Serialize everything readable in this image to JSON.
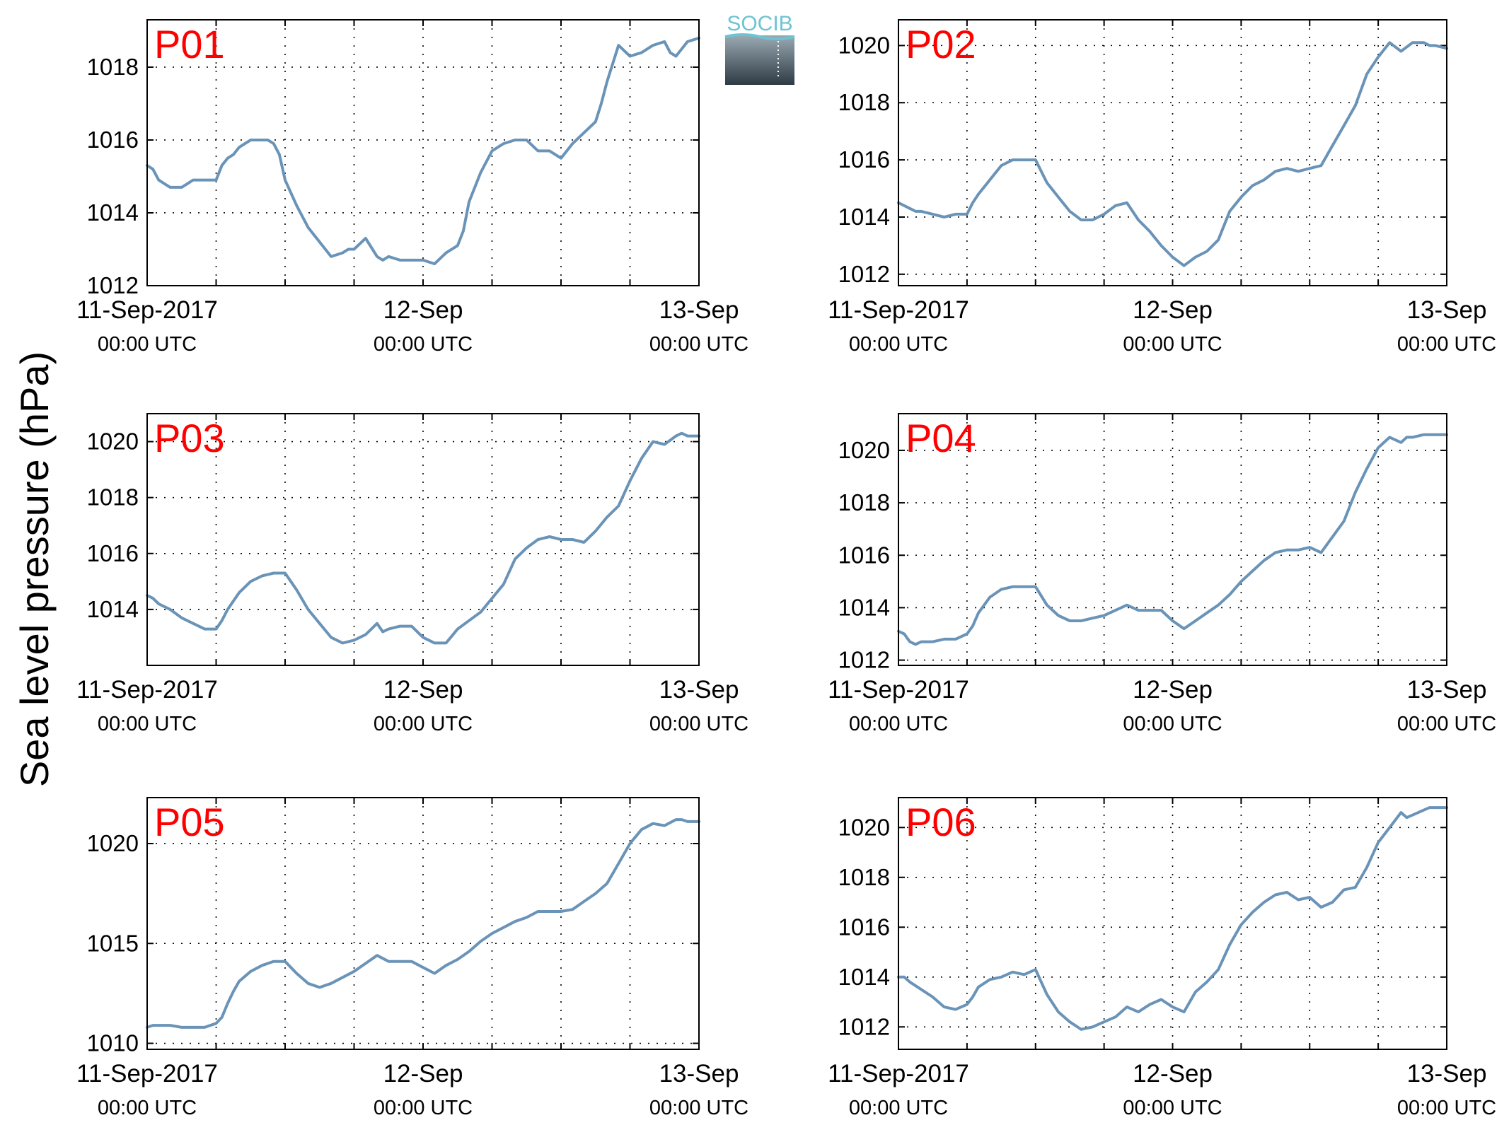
{
  "figure": {
    "ylabel": "Sea level pressure (hPa)",
    "logo_text": "SOCIB",
    "colors": {
      "line": "#6A93B8",
      "panel_label": "#FF0000",
      "axes": "#000000",
      "grid": "#000000",
      "logo_top": "#6EC3D3",
      "logo_bottom": "#2E3B44"
    }
  },
  "chart_data": [
    {
      "type": "line",
      "panel": "P01",
      "xlim": [
        0,
        48
      ],
      "ylim": [
        1012,
        1019.3
      ],
      "yticks": [
        1012,
        1014,
        1016,
        1018
      ],
      "xtick_labels": [
        [
          "11-Sep-2017",
          "00:00 UTC"
        ],
        [
          "12-Sep",
          "00:00 UTC"
        ],
        [
          "13-Sep",
          "00:00 UTC"
        ]
      ],
      "grid": true,
      "series": [
        {
          "x": [
            0,
            0.5,
            1,
            1.5,
            2,
            3,
            3.5,
            4,
            5,
            6,
            6.5,
            7,
            7.5,
            8,
            9,
            10,
            10.5,
            11,
            11.5,
            12,
            13,
            14,
            15,
            16,
            17,
            17.5,
            18,
            19,
            20,
            20.5,
            21,
            22,
            23,
            24,
            25,
            26,
            27,
            27.5,
            28,
            29,
            30,
            31,
            32,
            33,
            34,
            35,
            36,
            37,
            38,
            39,
            39.5,
            40,
            41,
            42,
            43,
            44,
            45,
            45.5,
            46,
            46.5,
            47,
            48
          ],
          "y": [
            1015.3,
            1015.2,
            1014.9,
            1014.8,
            1014.7,
            1014.7,
            1014.8,
            1014.9,
            1014.9,
            1014.9,
            1015.3,
            1015.5,
            1015.6,
            1015.8,
            1016,
            1016,
            1016,
            1015.9,
            1015.6,
            1014.9,
            1014.2,
            1013.6,
            1013.2,
            1012.8,
            1012.9,
            1013,
            1013,
            1013.3,
            1012.8,
            1012.7,
            1012.8,
            1012.7,
            1012.7,
            1012.7,
            1012.6,
            1012.9,
            1013.1,
            1013.5,
            1014.3,
            1015.1,
            1015.7,
            1015.9,
            1016,
            1016,
            1015.7,
            1015.7,
            1015.5,
            1015.9,
            1016.2,
            1016.5,
            1017,
            1017.6,
            1018.6,
            1018.3,
            1018.4,
            1018.6,
            1018.7,
            1018.4,
            1018.3,
            1018.5,
            1018.7,
            1018.8
          ]
        }
      ]
    },
    {
      "type": "line",
      "panel": "P02",
      "xlim": [
        0,
        48
      ],
      "ylim": [
        1011.6,
        1020.9
      ],
      "yticks": [
        1012,
        1014,
        1016,
        1018,
        1020
      ],
      "xtick_labels": [
        [
          "11-Sep-2017",
          "00:00 UTC"
        ],
        [
          "12-Sep",
          "00:00 UTC"
        ],
        [
          "13-Sep",
          "00:00 UTC"
        ]
      ],
      "grid": true,
      "series": [
        {
          "x": [
            0,
            0.5,
            1,
            1.5,
            2,
            3,
            4,
            5,
            6,
            6.5,
            7,
            8,
            9,
            10,
            11,
            12,
            13,
            14,
            15,
            16,
            17,
            18,
            19,
            20,
            20.5,
            21,
            22,
            23,
            24,
            25,
            26,
            27,
            28,
            29,
            30,
            31,
            32,
            33,
            34,
            35,
            36,
            37,
            38,
            39,
            40,
            41,
            42,
            43,
            44,
            45,
            46,
            46.5,
            47,
            48
          ],
          "y": [
            1014.5,
            1014.4,
            1014.3,
            1014.2,
            1014.2,
            1014.1,
            1014,
            1014.1,
            1014.1,
            1014.5,
            1014.8,
            1015.3,
            1015.8,
            1016,
            1016,
            1016,
            1015.2,
            1014.7,
            1014.2,
            1013.9,
            1013.9,
            1014.1,
            1014.4,
            1014.5,
            1014.2,
            1013.9,
            1013.5,
            1013,
            1012.6,
            1012.3,
            1012.6,
            1012.8,
            1013.2,
            1014.2,
            1014.7,
            1015.1,
            1015.3,
            1015.6,
            1015.7,
            1015.6,
            1015.7,
            1015.8,
            1016.5,
            1017.2,
            1017.9,
            1019,
            1019.6,
            1020.1,
            1019.8,
            1020.1,
            1020.1,
            1020,
            1020,
            1019.9
          ]
        }
      ]
    },
    {
      "type": "line",
      "panel": "P03",
      "xlim": [
        0,
        48
      ],
      "ylim": [
        1012,
        1021
      ],
      "yticks": [
        1014,
        1016,
        1018,
        1020
      ],
      "xtick_labels": [
        [
          "11-Sep-2017",
          "00:00 UTC"
        ],
        [
          "12-Sep",
          "00:00 UTC"
        ],
        [
          "13-Sep",
          "00:00 UTC"
        ]
      ],
      "grid": true,
      "series": [
        {
          "x": [
            0,
            0.5,
            1,
            2,
            3,
            4,
            5,
            6,
            6.5,
            7,
            7.5,
            8,
            9,
            10,
            11,
            12,
            13,
            14,
            15,
            16,
            17,
            18,
            19,
            20,
            20.5,
            21,
            22,
            23,
            24,
            25,
            26,
            27,
            28,
            29,
            30,
            31,
            32,
            33,
            34,
            35,
            36,
            37,
            38,
            39,
            40,
            41,
            42,
            43,
            44,
            45,
            46,
            46.5,
            47,
            48
          ],
          "y": [
            1014.5,
            1014.4,
            1014.2,
            1014,
            1013.7,
            1013.5,
            1013.3,
            1013.3,
            1013.6,
            1014,
            1014.3,
            1014.6,
            1015,
            1015.2,
            1015.3,
            1015.3,
            1014.7,
            1014,
            1013.5,
            1013,
            1012.8,
            1012.9,
            1013.1,
            1013.5,
            1013.2,
            1013.3,
            1013.4,
            1013.4,
            1013,
            1012.8,
            1012.8,
            1013.3,
            1013.6,
            1013.9,
            1014.4,
            1014.9,
            1015.8,
            1016.2,
            1016.5,
            1016.6,
            1016.5,
            1016.5,
            1016.4,
            1016.8,
            1017.3,
            1017.7,
            1018.6,
            1019.4,
            1020,
            1019.9,
            1020.2,
            1020.3,
            1020.2,
            1020.2
          ]
        }
      ]
    },
    {
      "type": "line",
      "panel": "P04",
      "xlim": [
        0,
        48
      ],
      "ylim": [
        1011.8,
        1021.4
      ],
      "yticks": [
        1012,
        1014,
        1016,
        1018,
        1020
      ],
      "xtick_labels": [
        [
          "11-Sep-2017",
          "00:00 UTC"
        ],
        [
          "12-Sep",
          "00:00 UTC"
        ],
        [
          "13-Sep",
          "00:00 UTC"
        ]
      ],
      "grid": true,
      "series": [
        {
          "x": [
            0,
            0.5,
            1,
            1.5,
            2,
            3,
            4,
            5,
            6,
            6.5,
            7,
            7.5,
            8,
            9,
            10,
            11,
            12,
            13,
            14,
            15,
            16,
            17,
            18,
            19,
            20,
            21,
            22,
            23,
            24,
            25,
            26,
            27,
            28,
            29,
            30,
            31,
            32,
            33,
            34,
            35,
            36,
            37,
            38,
            39,
            40,
            41,
            42,
            43,
            44,
            44.5,
            45,
            46,
            46.5,
            47,
            48
          ],
          "y": [
            1013.1,
            1013,
            1012.7,
            1012.6,
            1012.7,
            1012.7,
            1012.8,
            1012.8,
            1013,
            1013.3,
            1013.8,
            1014.1,
            1014.4,
            1014.7,
            1014.8,
            1014.8,
            1014.8,
            1014.1,
            1013.7,
            1013.5,
            1013.5,
            1013.6,
            1013.7,
            1013.9,
            1014.1,
            1013.9,
            1013.9,
            1013.9,
            1013.5,
            1013.2,
            1013.5,
            1013.8,
            1014.1,
            1014.5,
            1015,
            1015.4,
            1015.8,
            1016.1,
            1016.2,
            1016.2,
            1016.3,
            1016.1,
            1016.7,
            1017.3,
            1018.4,
            1019.3,
            1020.1,
            1020.5,
            1020.3,
            1020.5,
            1020.5,
            1020.6,
            1020.6,
            1020.6,
            1020.6
          ]
        }
      ]
    },
    {
      "type": "line",
      "panel": "P05",
      "xlim": [
        0,
        48
      ],
      "ylim": [
        1009.7,
        1022.3
      ],
      "yticks": [
        1010,
        1015,
        1020
      ],
      "xtick_labels": [
        [
          "11-Sep-2017",
          "00:00 UTC"
        ],
        [
          "12-Sep",
          "00:00 UTC"
        ],
        [
          "13-Sep",
          "00:00 UTC"
        ]
      ],
      "grid": true,
      "series": [
        {
          "x": [
            0,
            0.5,
            1,
            2,
            3,
            4,
            5,
            6,
            6.5,
            7,
            7.5,
            8,
            9,
            10,
            11,
            12,
            13,
            14,
            15,
            16,
            17,
            18,
            19,
            20,
            21,
            22,
            23,
            24,
            25,
            26,
            27,
            28,
            29,
            30,
            31,
            32,
            33,
            34,
            35,
            36,
            37,
            38,
            39,
            40,
            41,
            42,
            43,
            44,
            45,
            46,
            46.5,
            47,
            48
          ],
          "y": [
            1010.8,
            1010.9,
            1010.9,
            1010.9,
            1010.8,
            1010.8,
            1010.8,
            1011,
            1011.3,
            1012,
            1012.6,
            1013.1,
            1013.6,
            1013.9,
            1014.1,
            1014.1,
            1013.5,
            1013,
            1012.8,
            1013,
            1013.3,
            1013.6,
            1014,
            1014.4,
            1014.1,
            1014.1,
            1014.1,
            1013.8,
            1013.5,
            1013.9,
            1014.2,
            1014.6,
            1015.1,
            1015.5,
            1015.8,
            1016.1,
            1016.3,
            1016.6,
            1016.6,
            1016.6,
            1016.7,
            1017.1,
            1017.5,
            1018,
            1019,
            1020,
            1020.7,
            1021,
            1020.9,
            1021.2,
            1021.2,
            1021.1,
            1021.1
          ]
        }
      ]
    },
    {
      "type": "line",
      "panel": "P06",
      "xlim": [
        0,
        48
      ],
      "ylim": [
        1011.1,
        1021.2
      ],
      "yticks": [
        1012,
        1014,
        1016,
        1018,
        1020
      ],
      "xtick_labels": [
        [
          "11-Sep-2017",
          "00:00 UTC"
        ],
        [
          "12-Sep",
          "00:00 UTC"
        ],
        [
          "13-Sep",
          "00:00 UTC"
        ]
      ],
      "grid": true,
      "series": [
        {
          "x": [
            0,
            0.5,
            1,
            2,
            3,
            4,
            5,
            6,
            6.5,
            7,
            8,
            9,
            10,
            11,
            12,
            12.5,
            13,
            14,
            15,
            16,
            17,
            18,
            19,
            20,
            21,
            22,
            23,
            24,
            25,
            26,
            27,
            28,
            29,
            30,
            31,
            32,
            33,
            34,
            35,
            36,
            37,
            38,
            39,
            40,
            41,
            42,
            43,
            44,
            44.5,
            45,
            46,
            46.5,
            47,
            48
          ],
          "y": [
            1014,
            1014,
            1013.8,
            1013.5,
            1013.2,
            1012.8,
            1012.7,
            1012.9,
            1013.2,
            1013.6,
            1013.9,
            1014,
            1014.2,
            1014.1,
            1014.3,
            1013.8,
            1013.3,
            1012.6,
            1012.2,
            1011.9,
            1012,
            1012.2,
            1012.4,
            1012.8,
            1012.6,
            1012.9,
            1013.1,
            1012.8,
            1012.6,
            1013.4,
            1013.8,
            1014.3,
            1015.3,
            1016.1,
            1016.6,
            1017,
            1017.3,
            1017.4,
            1017.1,
            1017.2,
            1016.8,
            1017,
            1017.5,
            1017.6,
            1018.4,
            1019.4,
            1020,
            1020.6,
            1020.4,
            1020.5,
            1020.7,
            1020.8,
            1020.8,
            1020.8
          ]
        }
      ]
    }
  ]
}
